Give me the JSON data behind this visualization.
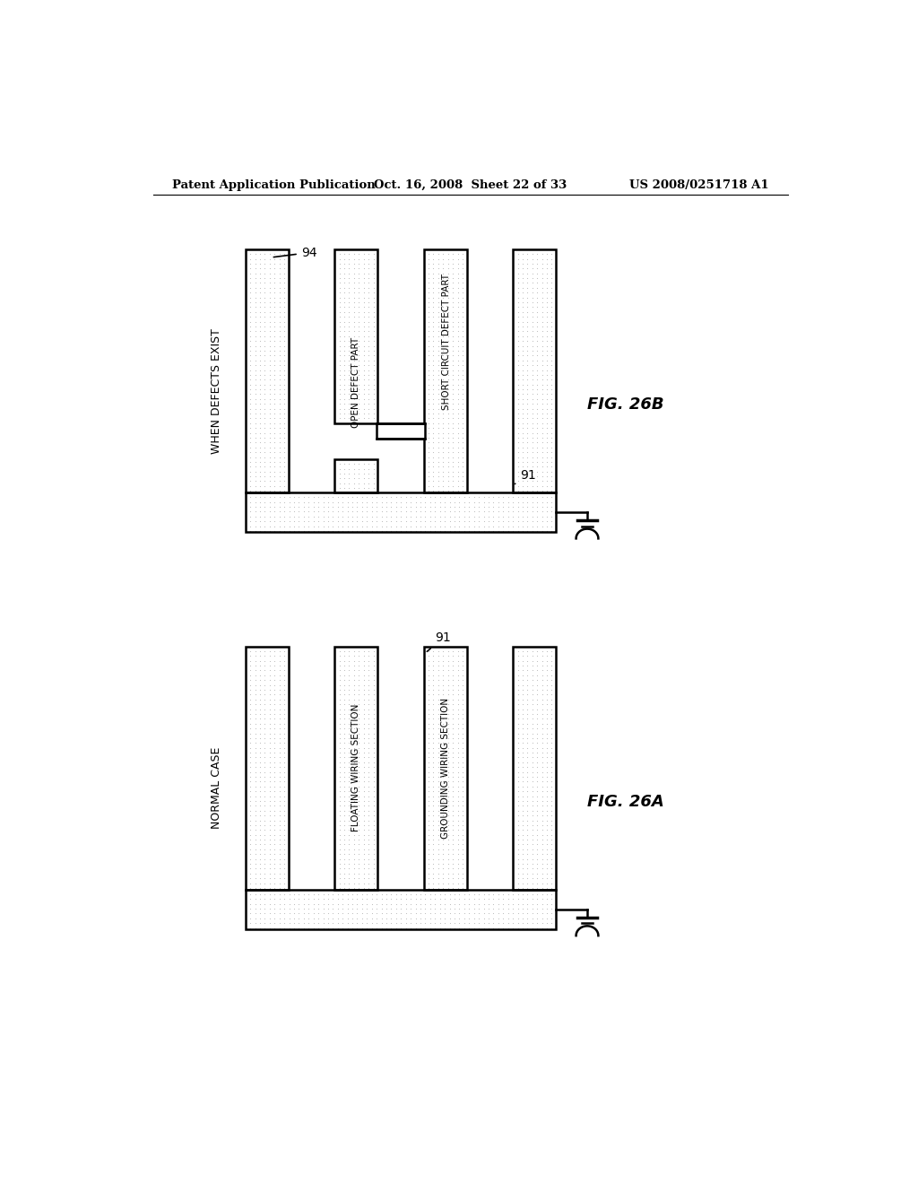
{
  "header_left": "Patent Application Publication",
  "header_mid": "Oct. 16, 2008  Sheet 22 of 33",
  "header_right": "US 2008/0251718 A1",
  "bg_color": "#ffffff",
  "dot_color": "#b8b8b8",
  "fig_a_label": "FIG. 26A",
  "fig_b_label": "FIG. 26B",
  "fig_a_title": "NORMAL CASE",
  "fig_b_title": "WHEN DEFECTS EXIST",
  "label_91a": "91",
  "label_91b": "91",
  "label_94": "94",
  "label_floating": "FLOATING WIRING SECTION",
  "label_grounding": "GROUNDING WIRING SECTION",
  "label_open": "OPEN DEFECT PART",
  "label_short": "SHORT CIRCUIT DEFECT PART"
}
